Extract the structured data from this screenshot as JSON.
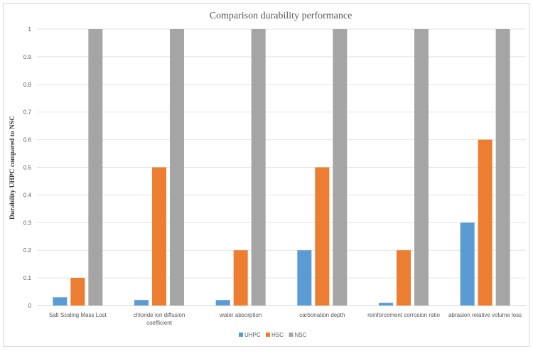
{
  "chart_data": {
    "type": "bar",
    "title": "Comparison durability performance",
    "xlabel": "",
    "ylabel": "Durability UHPC compared to NSC",
    "ylim": [
      0,
      1
    ],
    "yticks": [
      "0",
      "0.1",
      "0.2",
      "0.3",
      "0.4",
      "0.5",
      "0.6",
      "0.7",
      "0.8",
      "0.9",
      "1"
    ],
    "grid": true,
    "legend_position": "bottom",
    "categories": [
      [
        "Salt Scaling Mass Lost"
      ],
      [
        "chloride ion diffusion",
        "coefficient"
      ],
      [
        "water absorption"
      ],
      [
        "carbonation depth"
      ],
      [
        "reinforcement corrosion ratio"
      ],
      [
        "abrasion relative volume loss"
      ]
    ],
    "series": [
      {
        "name": "UHPC",
        "color": "#5b9bd5",
        "values": [
          0.03,
          0.02,
          0.02,
          0.2,
          0.01,
          0.3
        ]
      },
      {
        "name": "HSC",
        "color": "#ed7d31",
        "values": [
          0.1,
          0.5,
          0.2,
          0.5,
          0.2,
          0.6
        ]
      },
      {
        "name": "NSC",
        "color": "#a5a5a5",
        "values": [
          1,
          1,
          1,
          1,
          1,
          1
        ]
      }
    ]
  }
}
